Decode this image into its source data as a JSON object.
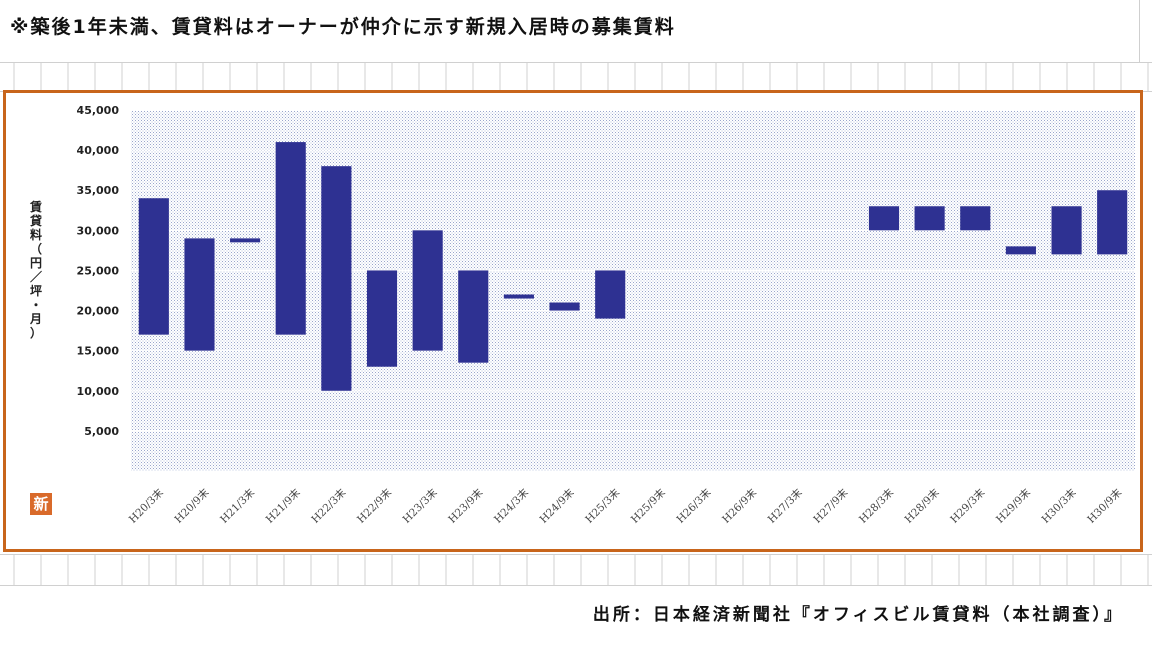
{
  "header": {
    "note": "※築後1年未満、賃貸料はオーナーが仲介に示す新規入居時の募集賃料"
  },
  "footer": {
    "source": "出所：日本経済新聞社『オフィスビル賃貸料（本社調査）』"
  },
  "badge": {
    "label": "新",
    "color": "#d96a2a"
  },
  "colors": {
    "bar": "#2e3192",
    "frame": "#c8651b",
    "plot_dots": "#9aa6cc"
  },
  "chart_data": {
    "type": "bar",
    "subtype": "floating-range",
    "title": "",
    "xlabel": "",
    "ylabel": "賃貸料（円／坪・月）",
    "ylim": [
      0,
      45000
    ],
    "yticks": [
      5000,
      10000,
      15000,
      20000,
      25000,
      30000,
      35000,
      40000,
      45000
    ],
    "ytick_labels": [
      "5,000",
      "10,000",
      "15,000",
      "20,000",
      "25,000",
      "30,000",
      "35,000",
      "40,000",
      "45,000"
    ],
    "grid": true,
    "categories": [
      "H20/3末",
      "H20/9末",
      "H21/3末",
      "H21/9末",
      "H22/3末",
      "H22/9末",
      "H23/3末",
      "H23/9末",
      "H24/3末",
      "H24/9末",
      "H25/3末",
      "H25/9末",
      "H26/3末",
      "H26/9末",
      "H27/3末",
      "H27/9末",
      "H28/3末",
      "H28/9末",
      "H29/3末",
      "H29/9末",
      "H30/3末",
      "H30/9末"
    ],
    "ranges": [
      [
        17000,
        34000
      ],
      [
        15000,
        29000
      ],
      [
        28500,
        29000
      ],
      [
        17000,
        41000
      ],
      [
        10000,
        38000
      ],
      [
        13000,
        25000
      ],
      [
        15000,
        30000
      ],
      [
        13500,
        25000
      ],
      [
        21500,
        22000
      ],
      [
        20000,
        21000
      ],
      [
        19000,
        25000
      ],
      null,
      null,
      null,
      null,
      null,
      [
        30000,
        33000
      ],
      [
        30000,
        33000
      ],
      [
        30000,
        33000
      ],
      [
        27000,
        28000
      ],
      [
        27000,
        33000
      ],
      [
        27000,
        35000
      ]
    ]
  }
}
